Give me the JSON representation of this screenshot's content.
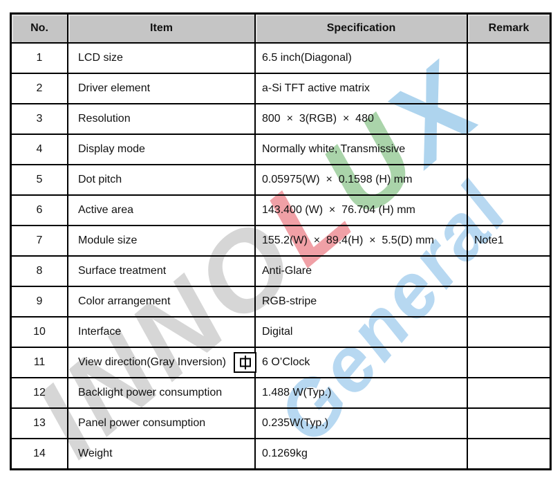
{
  "table": {
    "headers": [
      "No.",
      "Item",
      "Specification",
      "Remark"
    ],
    "rows": [
      {
        "no": "1",
        "item": "LCD size",
        "spec": "6.5 inch(Diagonal)",
        "remark": ""
      },
      {
        "no": "2",
        "item": "Driver element",
        "spec": "a-Si TFT active matrix",
        "remark": ""
      },
      {
        "no": "3",
        "item": "Resolution",
        "spec": "800  ×  3(RGB)  ×  480",
        "remark": ""
      },
      {
        "no": "4",
        "item": "Display mode",
        "spec": "Normally white, Transmissive",
        "remark": ""
      },
      {
        "no": "5",
        "item": "Dot pitch",
        "spec": "0.05975(W)  ×  0.1598 (H) mm",
        "remark": ""
      },
      {
        "no": "6",
        "item": "Active area",
        "spec": "143.400 (W)  ×  76.704 (H) mm",
        "remark": ""
      },
      {
        "no": "7",
        "item": "Module size",
        "spec": "155.2(W)  ×  89.4(H)  ×  5.5(D) mm",
        "remark": "Note1"
      },
      {
        "no": "8",
        "item": "Surface treatment",
        "spec": "Anti-Glare",
        "remark": ""
      },
      {
        "no": "9",
        "item": "Color arrangement",
        "spec": "RGB-stripe",
        "remark": ""
      },
      {
        "no": "10",
        "item": "Interface",
        "spec": "Digital",
        "remark": ""
      },
      {
        "no": "11",
        "item": "View direction(Gray Inversion)",
        "spec": "6 O’Clock",
        "remark": "",
        "anchor": true
      },
      {
        "no": "12",
        "item": "Backlight power consumption",
        "spec": "1.488 W(Typ.)",
        "remark": ""
      },
      {
        "no": "13",
        "item": "Panel power consumption",
        "spec": "0.235W(Typ.)",
        "remark": ""
      },
      {
        "no": "14",
        "item": "Weight",
        "spec": "0.1269kg",
        "remark": ""
      }
    ]
  },
  "watermark": {
    "brand_segments": [
      {
        "text": "INNO",
        "color": "#d6d6d6"
      },
      {
        "text": "L",
        "color": "#f0a0a6"
      },
      {
        "text": "U",
        "color": "#aad4aa"
      },
      {
        "text": "X",
        "color": "#aed4ee"
      }
    ],
    "overlay_text": "General",
    "overlay_color": "#b7d8f1"
  },
  "colors": {
    "header_bg": "#c5c5c5",
    "border": "#000000"
  }
}
